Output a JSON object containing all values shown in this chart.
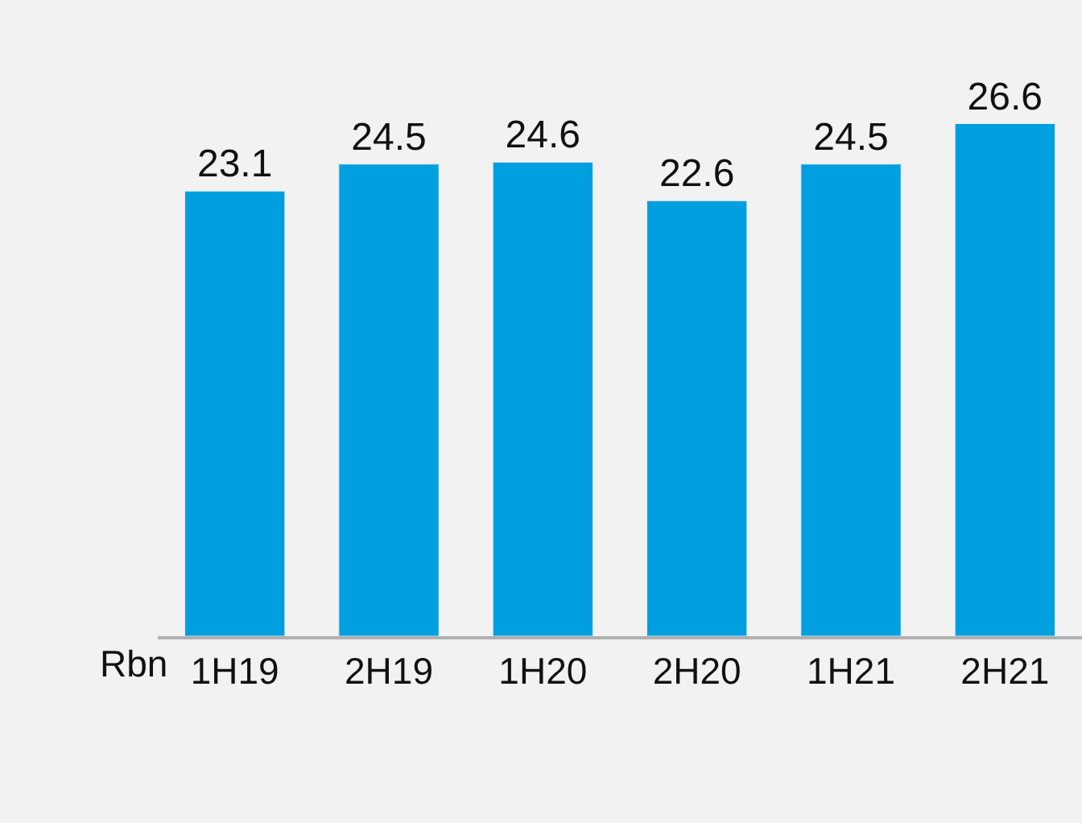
{
  "chart_data": {
    "type": "bar",
    "ylabel": "Rbn",
    "categories": [
      "1H19",
      "2H19",
      "1H20",
      "2H20",
      "1H21",
      "2H21"
    ],
    "values": [
      23.1,
      24.5,
      24.6,
      22.6,
      24.5,
      26.6
    ],
    "color": "#009fdf",
    "data_labels": true,
    "tick_labels": "x",
    "grid": false,
    "legend": false
  }
}
